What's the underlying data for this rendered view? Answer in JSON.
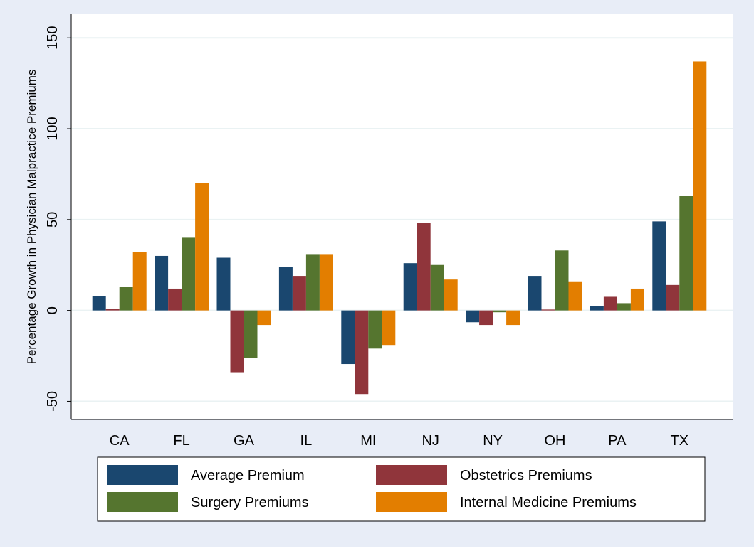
{
  "chart_data": {
    "type": "bar",
    "y_label": "Percentage Growth in Physician Malpractice Premiums",
    "categories": [
      "CA",
      "FL",
      "GA",
      "IL",
      "MI",
      "NJ",
      "NY",
      "OH",
      "PA",
      "TX"
    ],
    "series": [
      {
        "name": "Average Premium",
        "color": "#1a476f",
        "values": [
          8,
          30,
          29,
          24,
          -29.5,
          26,
          -6.5,
          19,
          2.5,
          49
        ]
      },
      {
        "name": "Obstetrics Premiums",
        "color": "#90353b",
        "values": [
          1,
          12,
          -34,
          19,
          -46,
          48,
          -8,
          0.5,
          7.5,
          14
        ]
      },
      {
        "name": "Surgery Premiums",
        "color": "#55752f",
        "values": [
          13,
          40,
          -26,
          31,
          -21,
          25,
          -1,
          33,
          4,
          63
        ]
      },
      {
        "name": "Internal Medicine Premiums",
        "color": "#e37e00",
        "values": [
          32,
          70,
          -8,
          31,
          -19,
          17,
          -8,
          16,
          12,
          137
        ]
      }
    ],
    "ylim": [
      -60,
      163
    ],
    "yticks": [
      -50,
      0,
      50,
      100,
      150
    ],
    "grid": true
  }
}
